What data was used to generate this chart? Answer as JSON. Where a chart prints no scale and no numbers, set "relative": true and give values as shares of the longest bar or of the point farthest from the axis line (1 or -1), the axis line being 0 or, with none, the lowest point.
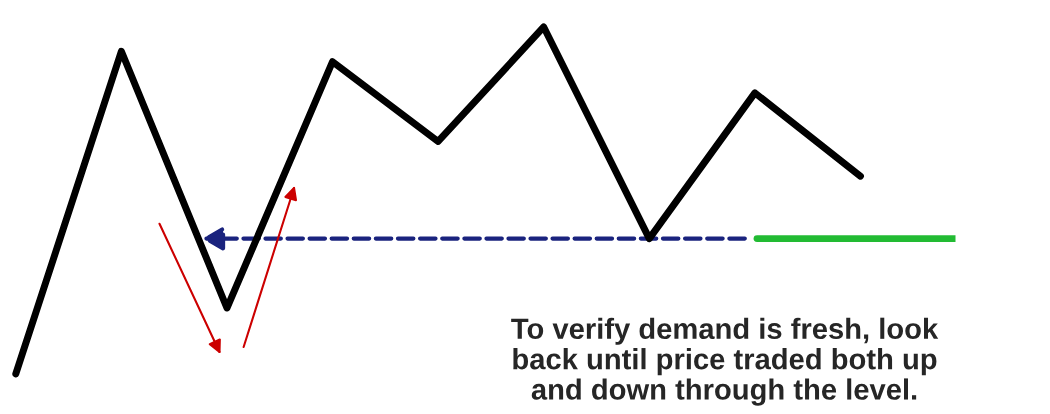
{
  "chart_data": {
    "type": "line",
    "relative": true,
    "categories": [
      null,
      null,
      null,
      null,
      null,
      null,
      null,
      null,
      null
    ],
    "series": [
      {
        "color": "#000000",
        "values": [
          0,
          0.93,
          0.19,
          0.9,
          0.67,
          1,
          0.39,
          0.81,
          0.57
        ]
      }
    ],
    "ref_lines": [
      {
        "axis": "y",
        "value": 0.39,
        "color": "#22bb33",
        "line_style": "solid"
      }
    ],
    "marker": "none",
    "line_style": "solid",
    "annotations": [
      "To verify demand is fresh, look\nback until price traded both up\nand down through the level."
    ]
  }
}
